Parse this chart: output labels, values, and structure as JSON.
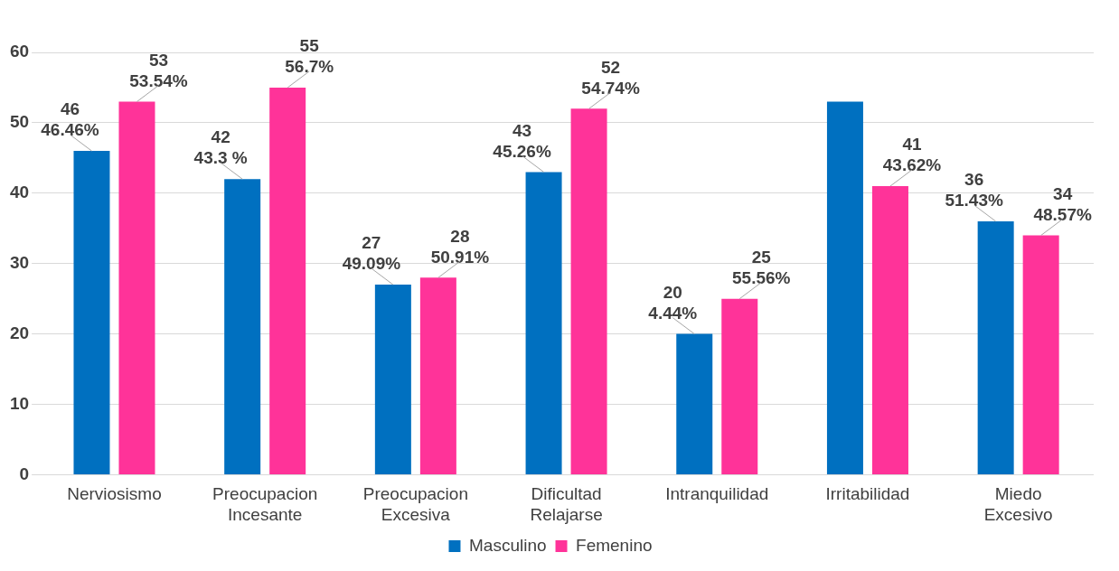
{
  "chart_data": {
    "type": "bar",
    "categories": [
      "Nerviosismo",
      "Preocupacion Incesante",
      "Preocupacion Excesiva",
      "Dificultad Relajarse",
      "Intranquilidad",
      "Irritabilidad",
      "Miedo Excesivo"
    ],
    "series": [
      {
        "name": "Masculino",
        "color": "#0070c0",
        "values": [
          46,
          42,
          27,
          43,
          20,
          53,
          36
        ],
        "value_labels": [
          "46\n46.46%",
          "42\n43.3 %",
          "27\n49.09%",
          "43\n45.26%",
          "20\n4.44%",
          null,
          "36\n51.43%"
        ]
      },
      {
        "name": "Femenino",
        "color": "#ff3399",
        "values": [
          53,
          55,
          28,
          52,
          25,
          41,
          34
        ],
        "value_labels": [
          "53\n53.54%",
          "55\n56.7%",
          "28\n50.91%",
          "52\n54.74%",
          "25\n55.56%",
          "41\n43.62%",
          "34\n48.57%"
        ]
      }
    ],
    "ylim": [
      0,
      60
    ],
    "yticks": [
      0,
      10,
      20,
      30,
      40,
      50,
      60
    ],
    "grid": "y",
    "legend": "bottom"
  }
}
